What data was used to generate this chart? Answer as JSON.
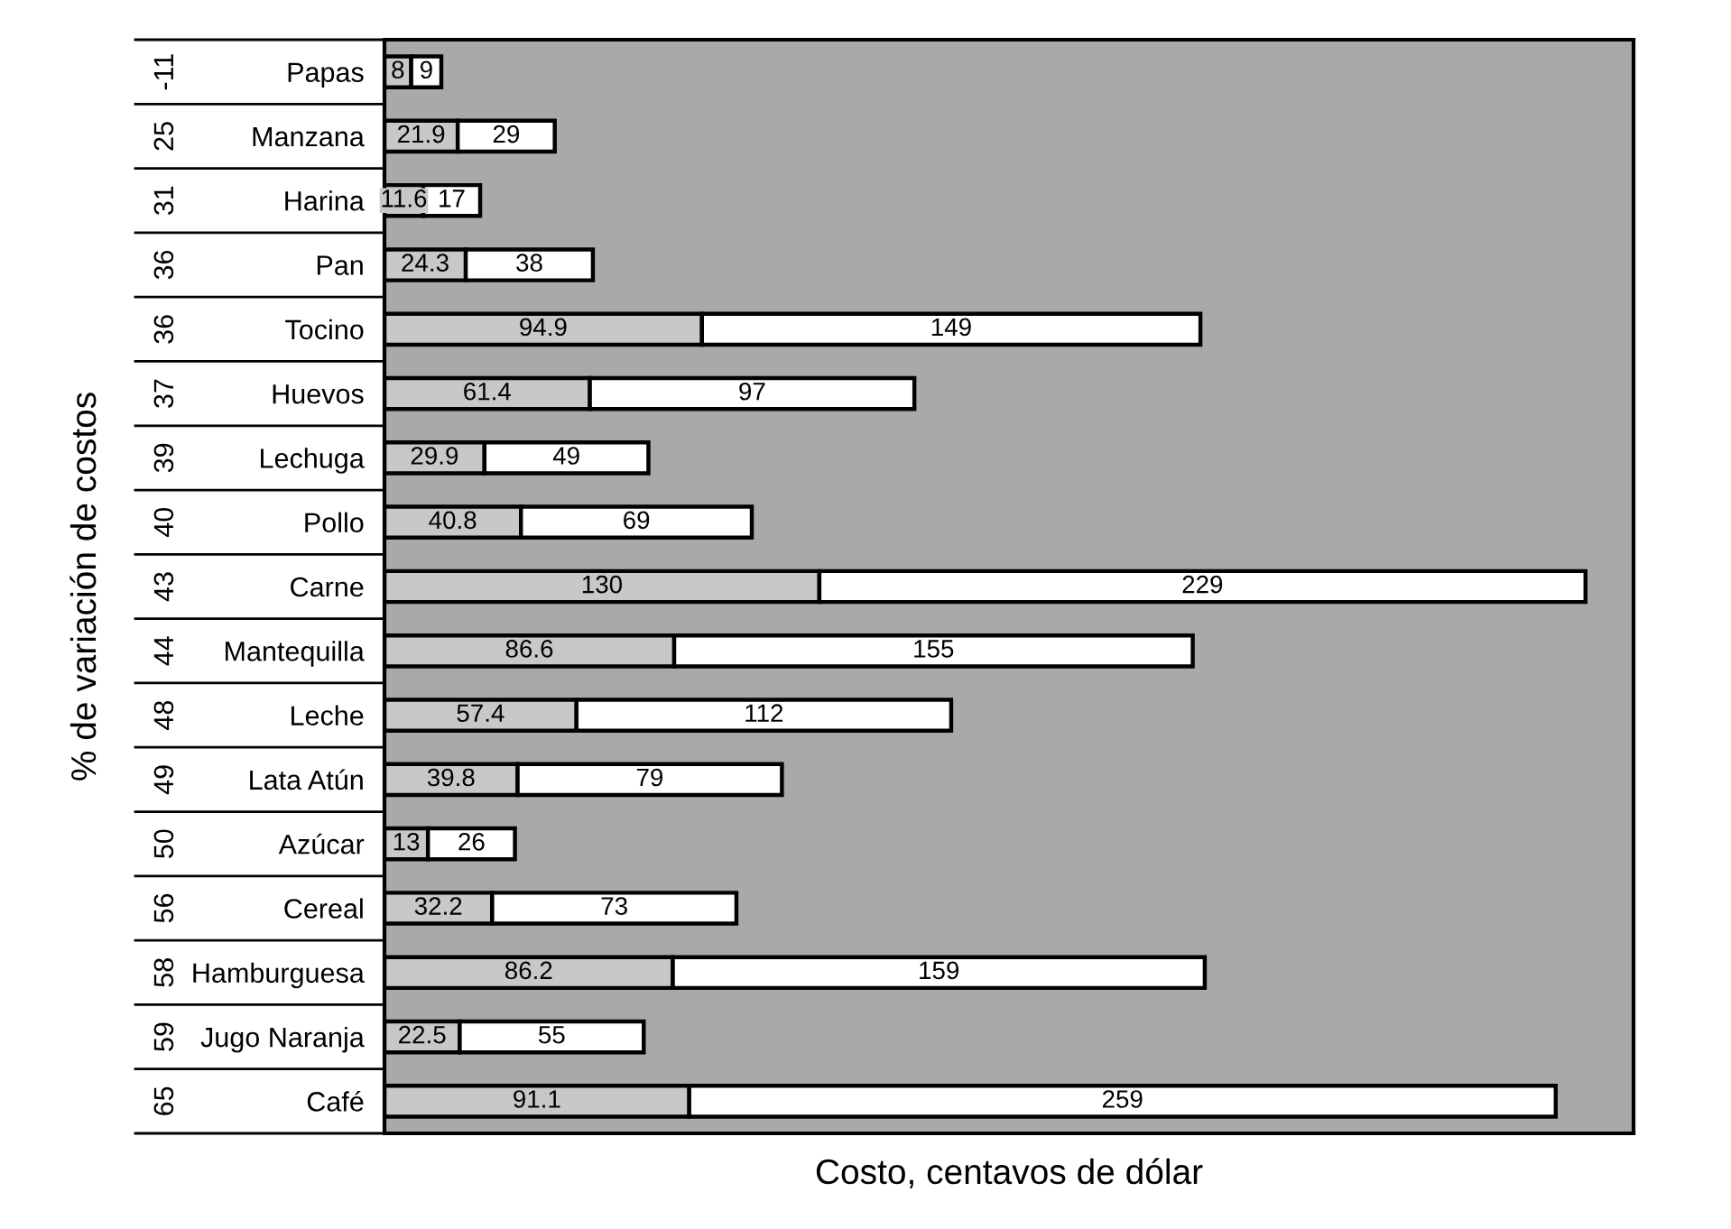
{
  "chart_data": {
    "type": "bar",
    "orientation": "horizontal",
    "stacked": true,
    "ylabel": "% de variación de costos",
    "xlabel": "Costo, centavos de dólar",
    "categories": [
      "Papas",
      "Manzana",
      "Harina",
      "Pan",
      "Tocino",
      "Huevos",
      "Lechuga",
      "Pollo",
      "Carne",
      "Mantequilla",
      "Leche",
      "Lata Atún",
      "Azúcar",
      "Cereal",
      "Hamburguesa",
      "Jugo Naranja",
      "Café"
    ],
    "y2_categories": [
      "-11",
      "25",
      "31",
      "36",
      "36",
      "37",
      "39",
      "40",
      "43",
      "44",
      "48",
      "49",
      "50",
      "56",
      "58",
      "59",
      "65"
    ],
    "series": [
      {
        "color": "#c8c8c8",
        "values": [
          8,
          21.9,
          11.6,
          24.3,
          94.9,
          61.4,
          29.9,
          40.8,
          130,
          86.6,
          57.4,
          39.8,
          13,
          32.2,
          86.2,
          22.5,
          91.1
        ]
      },
      {
        "color": "#ffffff",
        "values": [
          9,
          29,
          17,
          38,
          149,
          97,
          49,
          69,
          229,
          155,
          112,
          79,
          26,
          73,
          159,
          55,
          259
        ]
      }
    ],
    "data_labels": true,
    "tick_labels": "y",
    "grid": false,
    "legend": false
  }
}
